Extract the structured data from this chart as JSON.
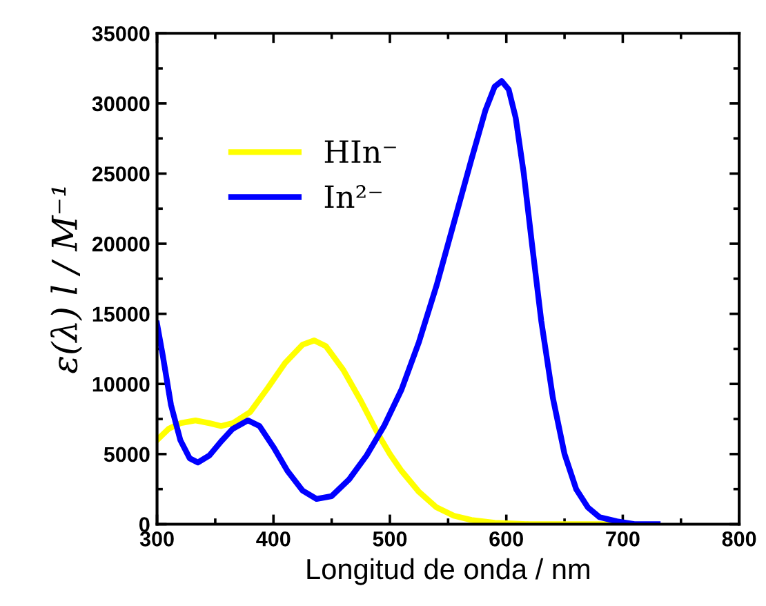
{
  "chart_data": {
    "type": "line",
    "xlabel": "Longitud de onda / nm",
    "ylabel": "ε(λ) l / M⁻¹",
    "xlim": [
      300,
      800
    ],
    "xticks": [
      300,
      400,
      500,
      600,
      700,
      800
    ],
    "ylim": [
      0,
      35000
    ],
    "yticks": [
      0,
      5000,
      10000,
      15000,
      20000,
      25000,
      30000,
      35000
    ],
    "grid": false,
    "legend": "top left",
    "marker": "none",
    "line_style": "solid",
    "series": [
      {
        "name": "HIn⁻",
        "color": "#ffff00",
        "x": [
          300,
          310,
          320,
          333,
          345,
          355,
          365,
          380,
          395,
          410,
          425,
          435,
          445,
          460,
          475,
          490,
          500,
          510,
          525,
          540,
          555,
          570,
          590,
          620,
          700
        ],
        "values": [
          6000,
          6800,
          7200,
          7400,
          7200,
          7000,
          7200,
          8000,
          9700,
          11500,
          12800,
          13100,
          12700,
          11000,
          8800,
          6400,
          5000,
          3800,
          2300,
          1200,
          600,
          300,
          100,
          0,
          0
        ]
      },
      {
        "name": "In²⁻",
        "color": "#0000ff",
        "x": [
          300,
          305,
          312,
          320,
          328,
          335,
          345,
          355,
          365,
          378,
          388,
          400,
          412,
          425,
          437,
          450,
          465,
          480,
          495,
          510,
          525,
          540,
          555,
          570,
          582,
          590,
          596,
          602,
          608,
          615,
          622,
          630,
          640,
          650,
          660,
          670,
          680,
          695,
          710,
          730
        ],
        "values": [
          14300,
          12000,
          8500,
          6000,
          4700,
          4400,
          4900,
          5900,
          6800,
          7400,
          7000,
          5500,
          3800,
          2400,
          1800,
          2000,
          3200,
          4900,
          7000,
          9600,
          13000,
          17000,
          21500,
          26000,
          29500,
          31200,
          31600,
          31000,
          29000,
          25000,
          20000,
          14500,
          9000,
          5000,
          2500,
          1200,
          500,
          200,
          0,
          0
        ]
      }
    ]
  }
}
